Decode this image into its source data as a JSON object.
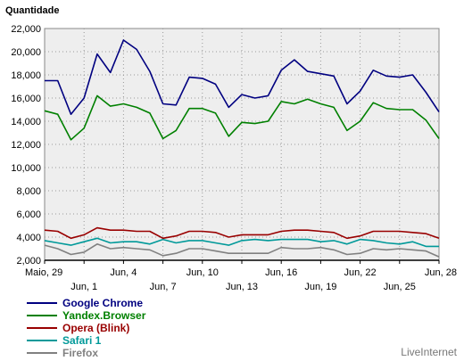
{
  "brand": "LiveInternet",
  "chart_data": {
    "type": "line",
    "ylabel": "Quantidade",
    "xlabel": "",
    "ylim": [
      2000,
      22000
    ],
    "yticks": [
      2000,
      4000,
      6000,
      8000,
      10000,
      12000,
      14000,
      16000,
      18000,
      20000,
      22000
    ],
    "ytick_labels": [
      "2,000",
      "4,000",
      "6,000",
      "8,000",
      "10,000",
      "12,000",
      "14,000",
      "16,000",
      "18,000",
      "20,000",
      "22,000"
    ],
    "x": [
      "Maio, 29",
      "Maio, 30",
      "Maio, 31",
      "Jun, 1",
      "Jun, 2",
      "Jun, 3",
      "Jun, 4",
      "Jun, 5",
      "Jun, 6",
      "Jun, 7",
      "Jun, 8",
      "Jun, 9",
      "Jun, 10",
      "Jun, 11",
      "Jun, 12",
      "Jun, 13",
      "Jun, 14",
      "Jun, 15",
      "Jun, 16",
      "Jun, 17",
      "Jun, 18",
      "Jun, 19",
      "Jun, 20",
      "Jun, 21",
      "Jun, 22",
      "Jun, 23",
      "Jun, 24",
      "Jun, 25",
      "Jun, 26",
      "Jun, 27",
      "Jun, 28"
    ],
    "xtick_labels": [
      {
        "index": 0,
        "label": "Maio, 29"
      },
      {
        "index": 3,
        "label": "Jun, 1"
      },
      {
        "index": 6,
        "label": "Jun, 4"
      },
      {
        "index": 9,
        "label": "Jun, 7"
      },
      {
        "index": 12,
        "label": "Jun, 10"
      },
      {
        "index": 15,
        "label": "Jun, 13"
      },
      {
        "index": 18,
        "label": "Jun, 16"
      },
      {
        "index": 21,
        "label": "Jun, 19"
      },
      {
        "index": 24,
        "label": "Jun, 22"
      },
      {
        "index": 27,
        "label": "Jun, 25"
      },
      {
        "index": 30,
        "label": "Jun, 28"
      }
    ],
    "grid": true,
    "legend_position": "bottom-left",
    "series": [
      {
        "name": "Google Chrome",
        "color": "#000080",
        "values": [
          17500,
          17500,
          14600,
          16000,
          19800,
          18200,
          21000,
          20200,
          18300,
          15500,
          15400,
          17800,
          17700,
          17200,
          15200,
          16300,
          16000,
          16200,
          18400,
          19300,
          18300,
          18100,
          17900,
          15500,
          16600,
          18400,
          17900,
          17800,
          18000,
          16500,
          14800
        ]
      },
      {
        "name": "Yandex.Browser",
        "color": "#008000",
        "values": [
          14900,
          14600,
          12400,
          13400,
          16200,
          15300,
          15500,
          15200,
          14700,
          12500,
          13200,
          15100,
          15100,
          14700,
          12700,
          13900,
          13800,
          14000,
          15700,
          15500,
          15900,
          15500,
          15200,
          13200,
          14000,
          15600,
          15100,
          15000,
          15000,
          14100,
          12500
        ]
      },
      {
        "name": "Opera (Blink)",
        "color": "#990000",
        "values": [
          4600,
          4500,
          3900,
          4200,
          4800,
          4600,
          4600,
          4500,
          4500,
          3900,
          4100,
          4500,
          4500,
          4400,
          4000,
          4200,
          4200,
          4200,
          4500,
          4600,
          4600,
          4500,
          4400,
          3900,
          4100,
          4500,
          4500,
          4500,
          4400,
          4300,
          3900
        ]
      },
      {
        "name": "Safari 1",
        "color": "#009999",
        "values": [
          3700,
          3500,
          3300,
          3600,
          3900,
          3500,
          3600,
          3600,
          3400,
          3800,
          3500,
          3700,
          3700,
          3500,
          3300,
          3700,
          3800,
          3700,
          3800,
          3800,
          3800,
          3600,
          3700,
          3400,
          3800,
          3700,
          3500,
          3400,
          3600,
          3200,
          3200
        ]
      },
      {
        "name": "Firefox",
        "color": "#808080",
        "values": [
          3300,
          3000,
          2500,
          2700,
          3400,
          3000,
          3100,
          3000,
          2900,
          2400,
          2600,
          3000,
          3000,
          2800,
          2600,
          2600,
          2600,
          2600,
          3100,
          3000,
          3000,
          3100,
          2900,
          2500,
          2600,
          3000,
          2900,
          3000,
          2900,
          2800,
          2300
        ]
      }
    ]
  }
}
